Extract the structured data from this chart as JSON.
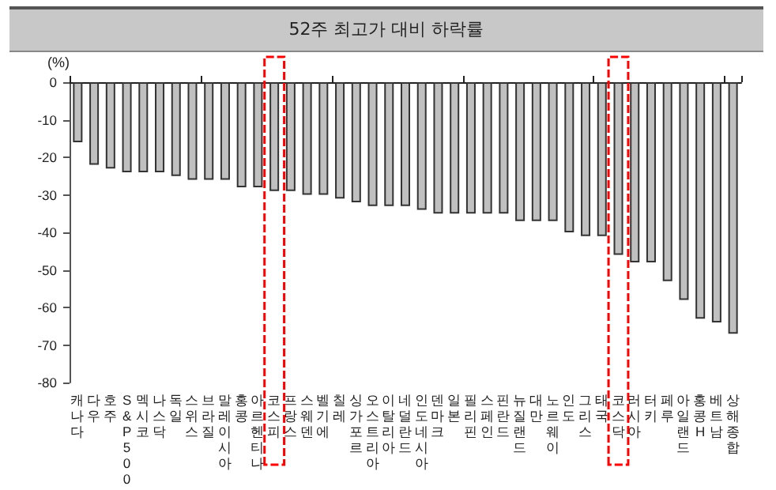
{
  "chart_data": {
    "type": "bar",
    "title": "52주 최고가 대비 하락률",
    "ylabel": "(%)",
    "categories": [
      "캐나다",
      "다우",
      "호주",
      "S&P500",
      "멕시코",
      "나스닥",
      "독일",
      "스위스",
      "브라질",
      "말레이시아",
      "홍콩",
      "아르헨티나",
      "코스피",
      "프랑스",
      "스웨덴",
      "벨기에",
      "칠레",
      "싱가포르",
      "오스트리아",
      "이탈리아",
      "네덜란드",
      "인도네시아",
      "덴마크",
      "일본",
      "필리핀",
      "스페인",
      "핀란드",
      "뉴질랜드",
      "대만",
      "노르웨이",
      "인도",
      "그리스",
      "태국",
      "코스닥",
      "러시아",
      "터키",
      "페루",
      "아일랜드",
      "홍콩H",
      "베트남",
      "상해종합"
    ],
    "values": [
      -16,
      -22,
      -23,
      -24,
      -24,
      -24,
      -25,
      -26,
      -26,
      -26,
      -28,
      -28,
      -29,
      -29,
      -30,
      -30,
      -31,
      -32,
      -33,
      -33,
      -33,
      -34,
      -35,
      -35,
      -35,
      -35,
      -35,
      -37,
      -37,
      -37,
      -40,
      -41,
      -41,
      -46,
      -48,
      -48,
      -53,
      -58,
      -63,
      -64,
      -67
    ],
    "color": "#c0c0c0",
    "ylim": [
      -80,
      0
    ],
    "yticks": [
      -80,
      -70,
      -60,
      -50,
      -40,
      -30,
      -20,
      -10,
      0
    ],
    "grid": false
  }
}
